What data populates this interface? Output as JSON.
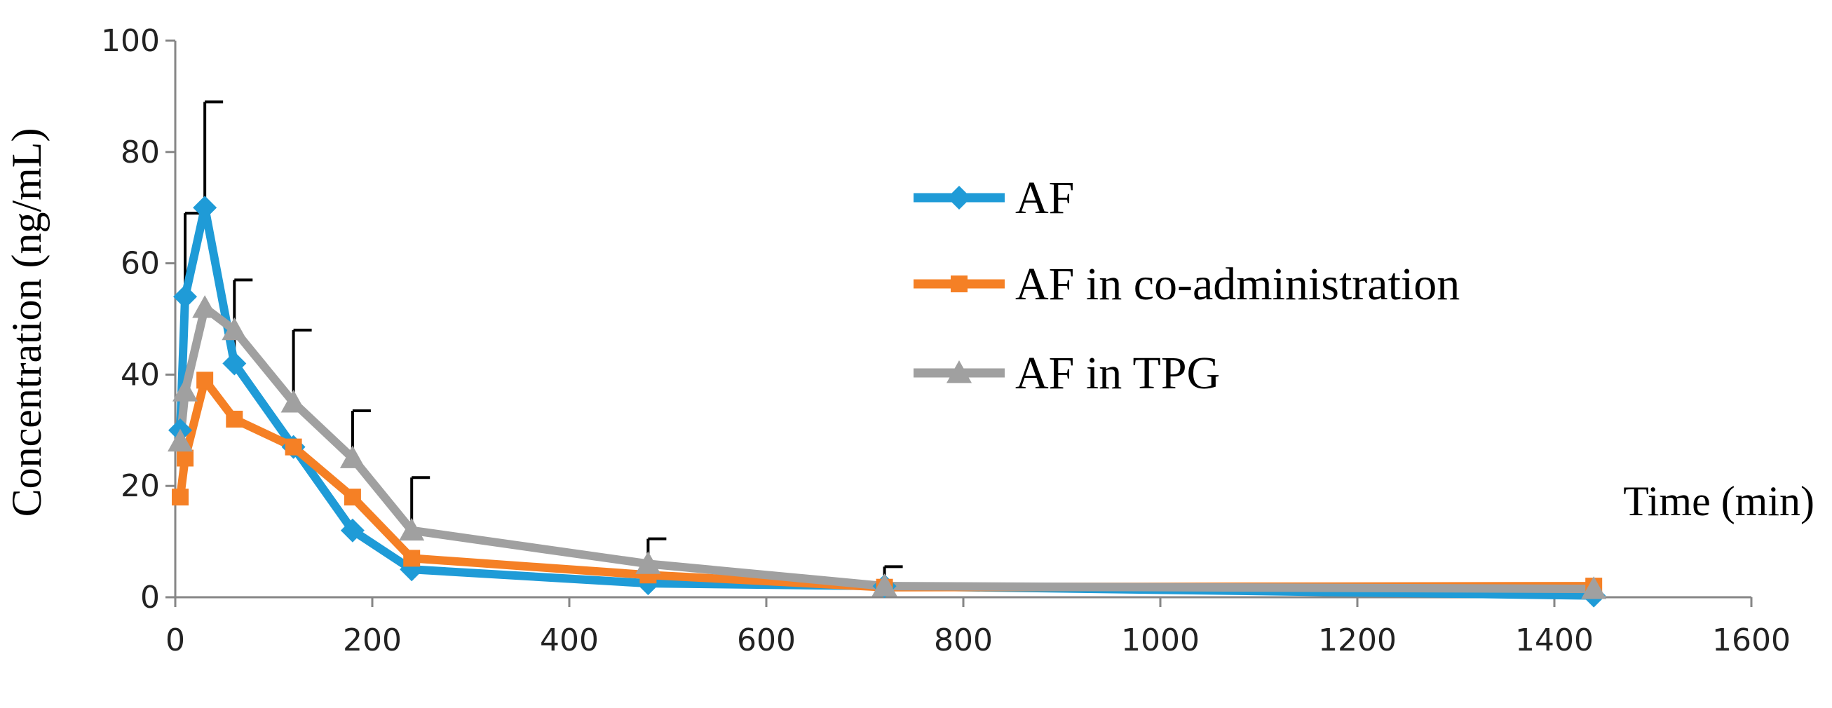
{
  "chart_data": {
    "type": "line",
    "title": "",
    "xlabel": "Time (min)",
    "ylabel": "Concentration (ng/mL)",
    "xlim": [
      0,
      1600
    ],
    "ylim": [
      0,
      100
    ],
    "x_ticks": [
      "0",
      "200",
      "400",
      "600",
      "800",
      "1000",
      "1200",
      "1400",
      "1600"
    ],
    "y_ticks": [
      "0",
      "20",
      "40",
      "60",
      "80",
      "100"
    ],
    "grid": false,
    "legend_position": "center-right",
    "series": [
      {
        "name": "AF",
        "color": "#1f9bd7",
        "marker": "diamond",
        "x": [
          5,
          10,
          30,
          60,
          120,
          180,
          240,
          480,
          720,
          1440
        ],
        "y": [
          30,
          54,
          70,
          42,
          27,
          12,
          5,
          2.5,
          2,
          0.3
        ],
        "error_upper": [
          null,
          69,
          89,
          57,
          null,
          null,
          null,
          null,
          null,
          null
        ]
      },
      {
        "name": "AF in co-administration",
        "color": "#f58025",
        "marker": "square",
        "x": [
          5,
          10,
          30,
          60,
          120,
          180,
          240,
          480,
          720,
          1440
        ],
        "y": [
          18,
          25,
          39,
          32,
          27,
          18,
          7,
          4,
          1.8,
          2
        ],
        "error_upper": [
          null,
          null,
          null,
          null,
          null,
          null,
          null,
          null,
          null,
          null
        ]
      },
      {
        "name": "AF in TPG",
        "color": "#a0a0a0",
        "marker": "triangle",
        "x": [
          5,
          10,
          30,
          60,
          120,
          180,
          240,
          480,
          720,
          1440
        ],
        "y": [
          28,
          37,
          52,
          48,
          35,
          25,
          12,
          6,
          2,
          1.5
        ],
        "error_upper": [
          null,
          null,
          null,
          null,
          48,
          33.5,
          21.5,
          10.5,
          5.5,
          null
        ]
      }
    ]
  }
}
